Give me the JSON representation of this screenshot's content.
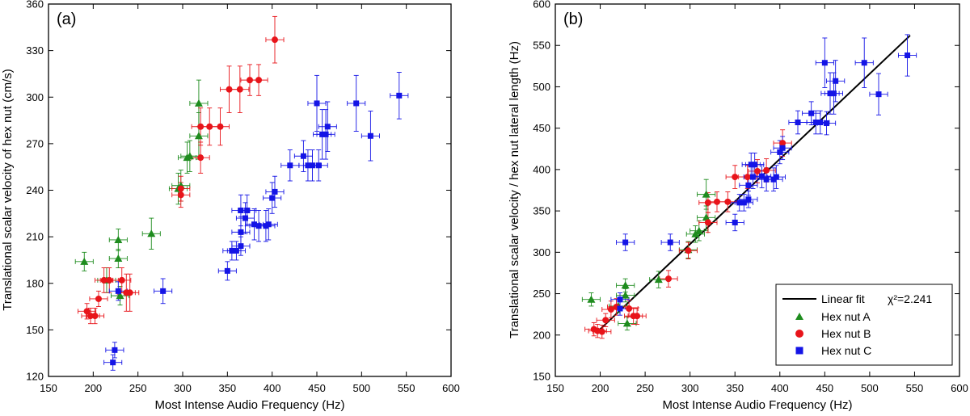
{
  "colors": {
    "A": "#1e8c1e",
    "B": "#e8141a",
    "C": "#1414e6",
    "fit": "#000000"
  },
  "chart_data": [
    {
      "panel": "(a)",
      "type": "scatter",
      "xlabel": "Most Intense Audio Frequency (Hz)",
      "ylabel": "Translational scalar velocity of hex nut (cm/s)",
      "xlim": [
        150,
        600
      ],
      "ylim": [
        120,
        360
      ],
      "xticks": [
        150,
        200,
        250,
        300,
        350,
        400,
        450,
        500,
        550,
        600
      ],
      "yticks": [
        120,
        150,
        180,
        210,
        240,
        270,
        300,
        330,
        360
      ],
      "series": [
        {
          "name": "Hex nut A",
          "marker": "triangle",
          "color_key": "A",
          "points": [
            [
              190,
              194,
              10,
              6
            ],
            [
              228,
              196,
              10,
              6
            ],
            [
              228,
              208,
              10,
              7
            ],
            [
              265,
              212,
              10,
              10
            ],
            [
              215,
              182,
              10,
              8
            ],
            [
              230,
              172,
              10,
              6
            ],
            [
              295,
              241,
              10,
              10
            ],
            [
              298,
              243,
              10,
              10
            ],
            [
              305,
              261,
              10,
              10
            ],
            [
              308,
              262,
              10,
              10
            ],
            [
              318,
              275,
              10,
              15
            ],
            [
              318,
              296,
              10,
              15
            ]
          ]
        },
        {
          "name": "Hex nut B",
          "marker": "circle",
          "color_key": "B",
          "points": [
            [
              193,
              162,
              10,
              5
            ],
            [
              197,
              159,
              10,
              5
            ],
            [
              202,
              159,
              10,
              5
            ],
            [
              206,
              170,
              10,
              5
            ],
            [
              212,
              182,
              10,
              8
            ],
            [
              218,
              182,
              10,
              8
            ],
            [
              232,
              182,
              10,
              8
            ],
            [
              237,
              174,
              10,
              12
            ],
            [
              241,
              174,
              10,
              12
            ],
            [
              298,
              237,
              10,
              8
            ],
            [
              298,
              241,
              10,
              8
            ],
            [
              320,
              261,
              10,
              10
            ],
            [
              320,
              281,
              10,
              12
            ],
            [
              330,
              281,
              10,
              12
            ],
            [
              342,
              281,
              10,
              12
            ],
            [
              352,
              305,
              10,
              15
            ],
            [
              364,
              305,
              10,
              15
            ],
            [
              375,
              311,
              10,
              10
            ],
            [
              385,
              311,
              10,
              10
            ],
            [
              403,
              337,
              10,
              15
            ]
          ]
        },
        {
          "name": "Hex nut C",
          "marker": "square",
          "color_key": "C",
          "points": [
            [
              222,
              129,
              10,
              5
            ],
            [
              224,
              137,
              10,
              5
            ],
            [
              228,
              175,
              10,
              6
            ],
            [
              278,
              175,
              10,
              8
            ],
            [
              350,
              188,
              10,
              6
            ],
            [
              355,
              201,
              10,
              6
            ],
            [
              360,
              201,
              10,
              6
            ],
            [
              365,
              204,
              10,
              6
            ],
            [
              365,
              213,
              10,
              10
            ],
            [
              365,
              227,
              10,
              10
            ],
            [
              370,
              222,
              10,
              10
            ],
            [
              372,
              227,
              10,
              10
            ],
            [
              380,
              218,
              10,
              10
            ],
            [
              385,
              217,
              10,
              10
            ],
            [
              393,
              217,
              10,
              10
            ],
            [
              396,
              218,
              10,
              10
            ],
            [
              400,
              235,
              10,
              10
            ],
            [
              403,
              239,
              10,
              10
            ],
            [
              420,
              256,
              10,
              10
            ],
            [
              435,
              262,
              10,
              10
            ],
            [
              440,
              256,
              10,
              10
            ],
            [
              445,
              256,
              10,
              10
            ],
            [
              450,
              296,
              10,
              18
            ],
            [
              452,
              256,
              10,
              10
            ],
            [
              456,
              276,
              10,
              16
            ],
            [
              460,
              276,
              10,
              16
            ],
            [
              462,
              281,
              10,
              16
            ],
            [
              494,
              296,
              10,
              18
            ],
            [
              510,
              275,
              10,
              16
            ],
            [
              542,
              301,
              10,
              15
            ]
          ]
        }
      ]
    },
    {
      "panel": "(b)",
      "type": "scatter",
      "xlabel": "Most Intense Audio Frequency (Hz)",
      "ylabel": "Translational scalar velocity / hex nut lateral length (Hz)",
      "xlim": [
        150,
        600
      ],
      "ylim": [
        150,
        600
      ],
      "xticks": [
        150,
        200,
        250,
        300,
        350,
        400,
        450,
        500,
        550,
        600
      ],
      "yticks": [
        150,
        200,
        250,
        300,
        350,
        400,
        450,
        500,
        550,
        600
      ],
      "fit": {
        "name": "Linear fit",
        "chi2_label": "χ²=2.241",
        "x": [
          198,
          545
        ],
        "y": [
          205,
          562
        ]
      },
      "series": [
        {
          "name": "Hex nut A",
          "marker": "triangle",
          "color_key": "A",
          "points": [
            [
              190,
              243,
              10,
              8
            ],
            [
              228,
              248,
              10,
              8
            ],
            [
              228,
              260,
              10,
              8
            ],
            [
              265,
              267,
              10,
              10
            ],
            [
              230,
              214,
              10,
              8
            ],
            [
              298,
              303,
              10,
              10
            ],
            [
              310,
              326,
              10,
              12
            ],
            [
              318,
              342,
              10,
              14
            ],
            [
              318,
              370,
              10,
              18
            ],
            [
              220,
              235,
              10,
              8
            ],
            [
              306,
              322,
              10,
              10
            ]
          ]
        },
        {
          "name": "Hex nut B",
          "marker": "circle",
          "color_key": "B",
          "points": [
            [
              193,
              207,
              10,
              8
            ],
            [
              197,
              205,
              10,
              8
            ],
            [
              202,
              204,
              10,
              8
            ],
            [
              206,
              218,
              10,
              8
            ],
            [
              212,
              231,
              10,
              10
            ],
            [
              218,
              234,
              10,
              10
            ],
            [
              232,
              232,
              10,
              10
            ],
            [
              237,
              223,
              10,
              10
            ],
            [
              241,
              223,
              10,
              10
            ],
            [
              298,
              302,
              10,
              10
            ],
            [
              320,
              336,
              10,
              12
            ],
            [
              320,
              360,
              10,
              12
            ],
            [
              330,
              361,
              10,
              12
            ],
            [
              342,
              361,
              10,
              12
            ],
            [
              350,
              391,
              10,
              14
            ],
            [
              364,
              391,
              10,
              14
            ],
            [
              375,
              398,
              10,
              14
            ],
            [
              385,
              399,
              10,
              14
            ],
            [
              403,
              432,
              10,
              16
            ],
            [
              276,
              268,
              10,
              10
            ]
          ]
        },
        {
          "name": "Hex nut C",
          "marker": "square",
          "color_key": "C",
          "points": [
            [
              222,
              243,
              10,
              8
            ],
            [
              222,
              232,
              10,
              8
            ],
            [
              228,
              312,
              10,
              10
            ],
            [
              278,
              312,
              10,
              10
            ],
            [
              350,
              336,
              10,
              10
            ],
            [
              355,
              360,
              10,
              10
            ],
            [
              360,
              360,
              10,
              10
            ],
            [
              365,
              364,
              10,
              10
            ],
            [
              365,
              381,
              10,
              12
            ],
            [
              368,
              406,
              10,
              14
            ],
            [
              370,
              391,
              10,
              14
            ],
            [
              372,
              406,
              10,
              14
            ],
            [
              380,
              392,
              10,
              14
            ],
            [
              385,
              388,
              10,
              14
            ],
            [
              393,
              388,
              10,
              14
            ],
            [
              396,
              391,
              10,
              14
            ],
            [
              400,
              421,
              10,
              14
            ],
            [
              403,
              426,
              10,
              14
            ],
            [
              420,
              457,
              10,
              14
            ],
            [
              435,
              468,
              10,
              14
            ],
            [
              440,
              457,
              10,
              14
            ],
            [
              445,
              457,
              10,
              14
            ],
            [
              450,
              529,
              10,
              30
            ],
            [
              452,
              456,
              10,
              14
            ],
            [
              456,
              492,
              10,
              25
            ],
            [
              460,
              492,
              10,
              25
            ],
            [
              462,
              507,
              10,
              25
            ],
            [
              494,
              529,
              10,
              30
            ],
            [
              510,
              491,
              10,
              25
            ],
            [
              542,
              538,
              10,
              25
            ]
          ]
        }
      ]
    }
  ]
}
